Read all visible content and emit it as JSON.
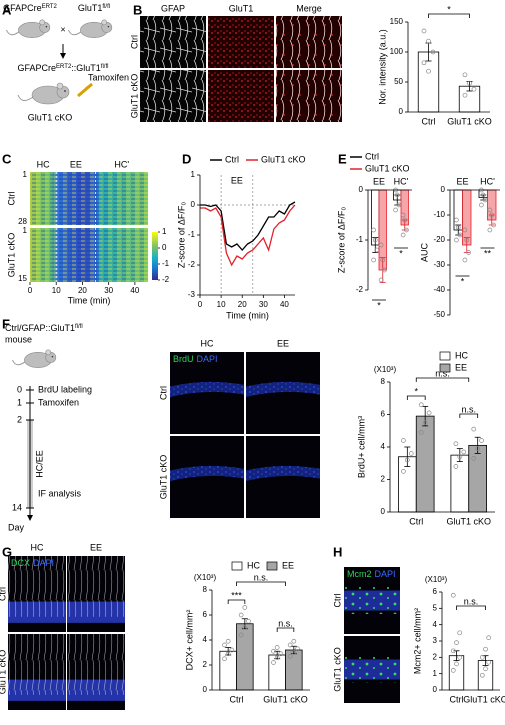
{
  "panels": [
    "A",
    "B",
    "C",
    "D",
    "E",
    "F",
    "G",
    "H"
  ],
  "panel_a": {
    "parent1": {
      "text": "GFAPCre",
      "sup": "ERT2"
    },
    "parent2": {
      "text": "GluT1",
      "sup": "fl/fl"
    },
    "cross": "×",
    "offspring": {
      "text": "GFAPCre",
      "sup": "ERT2",
      "text2": "::GluT1",
      "sup2": "fl/fl"
    },
    "drug": "Tamoxifen",
    "label": "GluT1 cKO"
  },
  "panel_b_images": {
    "columns": [
      "GFAP",
      "GluT1",
      "Merge"
    ],
    "rows": [
      "Ctrl",
      "GluT1 cKO"
    ]
  },
  "panel_f_schematic": {
    "title": {
      "text": "Ctrl/GFAP::GluT1",
      "sup": "fl/fl"
    },
    "subtitle": "mouse",
    "days": [
      0,
      1,
      2,
      14
    ],
    "events": [
      "BrdU labeling",
      "Tamoxifen",
      "HC/EE",
      "IF analysis"
    ],
    "axis_label": "Day"
  },
  "panel_f_images": {
    "columns": [
      "HC",
      "EE"
    ],
    "rows": [
      "Ctrl",
      "GluT1 cKO"
    ],
    "stain": [
      "BrdU",
      "DAPI"
    ]
  },
  "panel_g_images": {
    "columns": [
      "HC",
      "EE"
    ],
    "rows": [
      "Ctrl",
      "GluT1 cKO"
    ],
    "stain": [
      "DCX",
      "DAPI"
    ]
  },
  "panel_h_images": {
    "rows": [
      "Ctrl",
      "GluT1 cKO"
    ],
    "stain": [
      "Mcm2",
      "DAPI"
    ]
  },
  "chart_data": [
    {
      "type": "bar",
      "ylabel": "Nor. intensity (a.u.)",
      "categories": [
        "Ctrl",
        "GluT1 cKO"
      ],
      "series": [
        {
          "color": "#ffffff",
          "values": [
            100,
            43
          ],
          "errors": [
            15,
            8
          ],
          "points": [
            [
              135,
              118,
              100,
              82,
              68
            ],
            [
              62,
              48,
              38,
              28
            ]
          ]
        }
      ],
      "ylim": [
        0,
        150
      ],
      "yticks": [
        0,
        50,
        100,
        150
      ],
      "annotations": [
        "*"
      ]
    },
    {
      "type": "heatmap",
      "xlabel": "Time (min)",
      "xlim": [
        0,
        45
      ],
      "xticks": [
        0,
        10,
        20,
        30,
        40
      ],
      "phases": [
        "HC",
        "EE",
        "HC'"
      ],
      "event_lines": [
        10,
        25
      ],
      "groups": [
        {
          "name": "Ctrl",
          "rows": [
            1,
            28
          ]
        },
        {
          "name": "GluT1 cKO",
          "rows": [
            1,
            15
          ]
        }
      ],
      "clim": [
        -2,
        1
      ],
      "cticks": [
        1,
        0,
        -1,
        -2
      ]
    },
    {
      "type": "line",
      "xlabel": "Time (min)",
      "ylabel": "Z-score of ΔF/F₀",
      "annotations": [
        "EE"
      ],
      "event_lines": [
        10,
        25
      ],
      "x": [
        0,
        2.5,
        5,
        7.5,
        10,
        12.5,
        15,
        17.5,
        20,
        22.5,
        25,
        27.5,
        30,
        32.5,
        35,
        37.5,
        40,
        42.5,
        45
      ],
      "series": [
        {
          "name": "Ctrl",
          "color": "#000000",
          "values": [
            0,
            0,
            -0.05,
            0,
            -0.2,
            -1.3,
            -1.4,
            -1.3,
            -1.5,
            -1.3,
            -1.2,
            -1.0,
            -0.7,
            -0.4,
            -0.4,
            -0.2,
            -0.3,
            0,
            0.1
          ]
        },
        {
          "name": "GluT1 cKO",
          "color": "#e3202a",
          "values": [
            -0.1,
            -0.1,
            -0.2,
            -0.1,
            -0.4,
            -1.6,
            -2.0,
            -1.7,
            -1.8,
            -1.6,
            -1.5,
            -1.3,
            -1.1,
            -1.5,
            -0.8,
            -0.6,
            -0.5,
            -0.2,
            0
          ]
        }
      ],
      "xlim": [
        0,
        45
      ],
      "xticks": [
        0,
        10,
        20,
        30,
        40
      ],
      "ylim": [
        -3,
        1
      ],
      "yticks": [
        1,
        0,
        -1,
        -2,
        -3
      ],
      "legend": "top"
    },
    {
      "type": "bar",
      "ylabel": "Z-score of ΔF/F₀",
      "categories": [
        "EE",
        "HC'"
      ],
      "series": [
        {
          "name": "Ctrl",
          "color": "#ffffff",
          "edge": "#000000",
          "values": [
            -1.1,
            -0.2
          ],
          "errors": [
            0.15,
            0.1
          ],
          "points": [
            [
              -0.8,
              -1.0,
              -1.2,
              -1.4
            ],
            [
              0,
              -0.1,
              -0.3,
              -0.4
            ]
          ]
        },
        {
          "name": "GluT1 cKO",
          "color": "#f6a5a8",
          "edge": "#e3202a",
          "values": [
            -1.6,
            -0.7
          ],
          "errors": [
            0.25,
            0.1
          ],
          "points": [
            [
              -1.1,
              -1.4,
              -1.6,
              -1.8
            ],
            [
              -0.5,
              -0.6,
              -0.8,
              -0.9
            ]
          ]
        }
      ],
      "ylim": [
        -2,
        0
      ],
      "yticks": [
        0,
        -1,
        -2
      ],
      "annotations": [
        "*",
        "*"
      ],
      "legend": "top-left"
    },
    {
      "type": "bar",
      "ylabel": "AUC",
      "categories": [
        "EE",
        "HC'"
      ],
      "series": [
        {
          "color": "#ffffff",
          "edge": "#000000",
          "values": [
            -16,
            -3
          ],
          "errors": [
            2,
            1
          ],
          "points": [
            [
              -12,
              -15,
              -18,
              -20
            ],
            [
              0,
              -2,
              -4,
              -6
            ]
          ]
        },
        {
          "color": "#f6a5a8",
          "edge": "#e3202a",
          "values": [
            -22,
            -12
          ],
          "errors": [
            3,
            2
          ],
          "points": [
            [
              -16,
              -20,
              -25,
              -28
            ],
            [
              -8,
              -10,
              -14,
              -16
            ]
          ]
        }
      ],
      "ylim": [
        -50,
        0
      ],
      "yticks": [
        0,
        -10,
        -20,
        -30,
        -40,
        -50
      ],
      "annotations": [
        "*",
        "**"
      ]
    },
    {
      "type": "bar",
      "ylabel": "BrdU+ cell/mm³",
      "scale_label": "(X10³)",
      "categories": [
        "Ctrl",
        "GluT1 cKO"
      ],
      "series": [
        {
          "name": "HC",
          "color": "#ffffff",
          "values": [
            3.4,
            3.5
          ],
          "errors": [
            0.6,
            0.4
          ],
          "points": [
            [
              2.5,
              3.2,
              3.6,
              4.4
            ],
            [
              2.8,
              3.4,
              3.7,
              4.2
            ]
          ]
        },
        {
          "name": "EE",
          "color": "#a6a6a6",
          "values": [
            5.9,
            4.1
          ],
          "errors": [
            0.6,
            0.5
          ],
          "points": [
            [
              4.9,
              5.5,
              6.1,
              6.6
            ],
            [
              3.3,
              3.9,
              4.4,
              5.1
            ]
          ]
        }
      ],
      "ylim": [
        0,
        8
      ],
      "yticks": [
        0,
        2,
        4,
        6,
        8
      ],
      "annotations": [
        "n.s.",
        "*",
        "n.s."
      ],
      "legend": "top-right"
    },
    {
      "type": "bar",
      "ylabel": "DCX+ cell/mm²",
      "scale_label": "(X10³)",
      "categories": [
        "Ctrl",
        "GluT1 cKO"
      ],
      "series": [
        {
          "name": "HC",
          "color": "#ffffff",
          "values": [
            3.1,
            2.8
          ],
          "errors": [
            0.3,
            0.3
          ],
          "points": [
            [
              2.5,
              2.9,
              3.2,
              3.6,
              3.9
            ],
            [
              2.2,
              2.6,
              2.9,
              3.1,
              3.4
            ]
          ]
        },
        {
          "name": "EE",
          "color": "#a6a6a6",
          "values": [
            5.3,
            3.2
          ],
          "errors": [
            0.4,
            0.3
          ],
          "points": [
            [
              4.4,
              5.0,
              5.5,
              6.0,
              6.6
            ],
            [
              2.7,
              3.0,
              3.3,
              3.6,
              3.9
            ]
          ]
        }
      ],
      "ylim": [
        0,
        8
      ],
      "yticks": [
        0,
        2,
        4,
        6,
        8
      ],
      "annotations": [
        "n.s.",
        "***",
        "n.s."
      ],
      "legend": "top"
    },
    {
      "type": "bar",
      "ylabel": "Mcm2+ cell/mm²",
      "scale_label": "(X10³)",
      "categories": [
        "Ctrl",
        "GluT1 cKO"
      ],
      "series": [
        {
          "color": "#ffffff",
          "values": [
            2.1,
            1.8
          ],
          "errors": [
            0.3,
            0.3
          ],
          "points": [
            [
              1.2,
              1.6,
              2.0,
              2.4,
              2.9,
              3.5,
              5.8
            ],
            [
              0.9,
              1.3,
              1.7,
              2.0,
              2.5,
              3.2
            ]
          ]
        }
      ],
      "ylim": [
        0,
        6
      ],
      "yticks": [
        0,
        1,
        2,
        3,
        4,
        5,
        6
      ],
      "annotations": [
        "n.s."
      ]
    }
  ]
}
